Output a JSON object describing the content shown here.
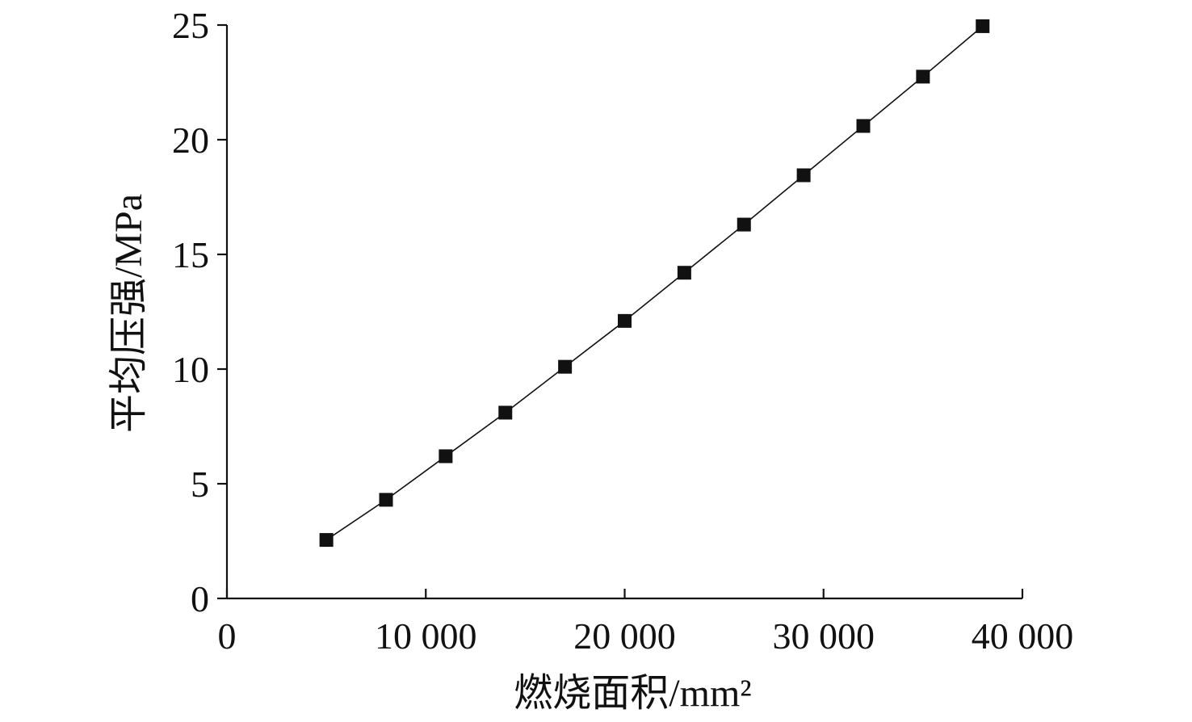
{
  "chart_data": {
    "type": "line",
    "xlabel": "燃烧面积/mm²",
    "ylabel": "平均压强/MPa",
    "xlim": [
      0,
      40000
    ],
    "ylim": [
      0,
      25
    ],
    "x_ticks": [
      {
        "value": 0,
        "label": "0"
      },
      {
        "value": 10000,
        "label": "10 000"
      },
      {
        "value": 20000,
        "label": "20 000"
      },
      {
        "value": 30000,
        "label": "30 000"
      },
      {
        "value": 40000,
        "label": "40 000"
      }
    ],
    "y_ticks": [
      {
        "value": 0,
        "label": "0"
      },
      {
        "value": 5,
        "label": "5"
      },
      {
        "value": 10,
        "label": "10"
      },
      {
        "value": 15,
        "label": "15"
      },
      {
        "value": 20,
        "label": "20"
      },
      {
        "value": 25,
        "label": "25"
      }
    ],
    "grid": false,
    "marker": "square",
    "series": [
      {
        "color": "#111111",
        "x": [
          5000,
          8000,
          11000,
          14000,
          17000,
          20000,
          23000,
          26000,
          29000,
          32000,
          35000,
          38000
        ],
        "y": [
          2.55,
          4.3,
          6.2,
          8.1,
          10.1,
          12.1,
          14.2,
          16.3,
          18.45,
          20.6,
          22.75,
          24.95
        ]
      }
    ]
  }
}
